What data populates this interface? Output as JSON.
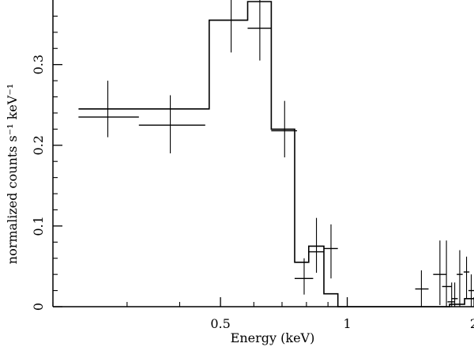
{
  "chart_data": {
    "type": "scatter",
    "title": "",
    "xlabel": "Energy (keV)",
    "ylabel": "normalized counts s⁻¹ keV⁻¹",
    "xscale": "log",
    "xlim": [
      0.2,
      2
    ],
    "ylim": [
      0,
      0.38
    ],
    "x_ticks": [
      {
        "value": 0.5,
        "label": "0.5"
      },
      {
        "value": 1,
        "label": "1"
      },
      {
        "value": 2,
        "label": "2"
      }
    ],
    "y_ticks": [
      {
        "value": 0,
        "label": "0"
      },
      {
        "value": 0.1,
        "label": "0.1"
      },
      {
        "value": 0.2,
        "label": "0.2"
      },
      {
        "value": 0.3,
        "label": "0.3"
      }
    ],
    "grid": false,
    "legend": "none",
    "series": [
      {
        "kind": "data-with-errors",
        "points": [
          {
            "x": 0.27,
            "xlo": 0.23,
            "xhi": 0.32,
            "y": 0.235,
            "ylo": 0.21,
            "yhi": 0.28
          },
          {
            "x": 0.38,
            "xlo": 0.32,
            "xhi": 0.46,
            "y": 0.225,
            "ylo": 0.19,
            "yhi": 0.262
          },
          {
            "x": 0.53,
            "xlo": 0.47,
            "xhi": 0.58,
            "y": 0.355,
            "ylo": 0.315,
            "yhi": 0.392
          },
          {
            "x": 0.62,
            "xlo": 0.58,
            "xhi": 0.66,
            "y": 0.345,
            "ylo": 0.305,
            "yhi": 0.392
          },
          {
            "x": 0.71,
            "xlo": 0.66,
            "xhi": 0.76,
            "y": 0.218,
            "ylo": 0.185,
            "yhi": 0.255
          },
          {
            "x": 0.79,
            "xlo": 0.75,
            "xhi": 0.83,
            "y": 0.035,
            "ylo": 0.015,
            "yhi": 0.06
          },
          {
            "x": 0.845,
            "xlo": 0.81,
            "xhi": 0.88,
            "y": 0.068,
            "ylo": 0.042,
            "yhi": 0.11
          },
          {
            "x": 0.915,
            "xlo": 0.88,
            "xhi": 0.95,
            "y": 0.072,
            "ylo": 0.035,
            "yhi": 0.102
          },
          {
            "x": 1.5,
            "xlo": 1.45,
            "xhi": 1.56,
            "y": 0.022,
            "ylo": 0.0,
            "yhi": 0.045
          },
          {
            "x": 1.66,
            "xlo": 1.6,
            "xhi": 1.72,
            "y": 0.04,
            "ylo": 0.002,
            "yhi": 0.082
          },
          {
            "x": 1.72,
            "xlo": 1.68,
            "xhi": 1.77,
            "y": 0.025,
            "ylo": 0.0,
            "yhi": 0.082
          },
          {
            "x": 1.77,
            "xlo": 1.73,
            "xhi": 1.8,
            "y": 0.006,
            "ylo": 0.0,
            "yhi": 0.03
          },
          {
            "x": 1.8,
            "xlo": 1.77,
            "xhi": 1.83,
            "y": 0.01,
            "ylo": 0.0,
            "yhi": 0.03
          },
          {
            "x": 1.85,
            "xlo": 1.82,
            "xhi": 1.88,
            "y": 0.04,
            "ylo": 0.0,
            "yhi": 0.07
          },
          {
            "x": 1.92,
            "xlo": 1.89,
            "xhi": 1.95,
            "y": 0.043,
            "ylo": 0.01,
            "yhi": 0.062
          },
          {
            "x": 1.97,
            "xlo": 1.94,
            "xhi": 2.0,
            "y": 0.02,
            "ylo": 0.0,
            "yhi": 0.04
          }
        ]
      },
      {
        "kind": "model-step",
        "steps": [
          {
            "x0": 0.23,
            "x1": 0.32,
            "y": 0.245
          },
          {
            "x0": 0.32,
            "x1": 0.47,
            "y": 0.245
          },
          {
            "x0": 0.47,
            "x1": 0.58,
            "y": 0.355
          },
          {
            "x0": 0.58,
            "x1": 0.66,
            "y": 0.378
          },
          {
            "x0": 0.66,
            "x1": 0.75,
            "y": 0.22
          },
          {
            "x0": 0.75,
            "x1": 0.81,
            "y": 0.055
          },
          {
            "x0": 0.81,
            "x1": 0.88,
            "y": 0.075
          },
          {
            "x0": 0.88,
            "x1": 0.95,
            "y": 0.016
          },
          {
            "x0": 0.95,
            "x1": 1.75,
            "y": 0.0
          },
          {
            "x0": 1.75,
            "x1": 1.9,
            "y": 0.003
          },
          {
            "x0": 1.9,
            "x1": 2.0,
            "y": 0.01
          }
        ]
      }
    ]
  }
}
